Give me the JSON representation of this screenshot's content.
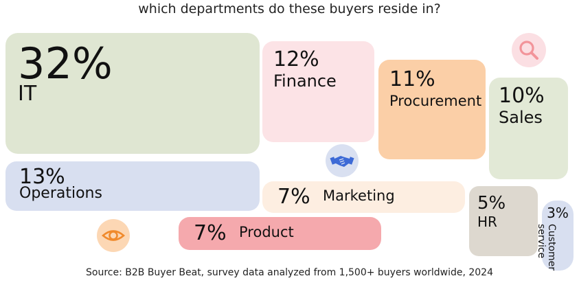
{
  "title": "which departments do these buyers reside in?",
  "source": "Source: B2B Buyer Beat, survey data analyzed from 1,500+ buyers worldwide, 2024",
  "icons": [
    "magnifier-icon",
    "handshake-icon",
    "eye-icon"
  ],
  "chart_data": {
    "type": "treemap",
    "title": "which departments do these buyers reside in?",
    "categories": [
      "IT",
      "Finance",
      "Procurement",
      "Sales",
      "Operations",
      "Marketing",
      "Product",
      "HR",
      "Customer service"
    ],
    "values": [
      32,
      12,
      11,
      10,
      13,
      7,
      7,
      5,
      3
    ],
    "value_labels": [
      "32%",
      "12%",
      "11%",
      "10%",
      "13%",
      "7%",
      "7%",
      "5%",
      "3%"
    ],
    "unit": "%",
    "colors": [
      "#dfe6d2",
      "#fce3e6",
      "#fbcfa7",
      "#e2e9d6",
      "#d8dff0",
      "#fdeee1",
      "#f5a9ad",
      "#ddd8cf",
      "#d8dff0"
    ],
    "source": "Source: B2B Buyer Beat, survey data analyzed from 1,500+ buyers worldwide, 2024"
  }
}
